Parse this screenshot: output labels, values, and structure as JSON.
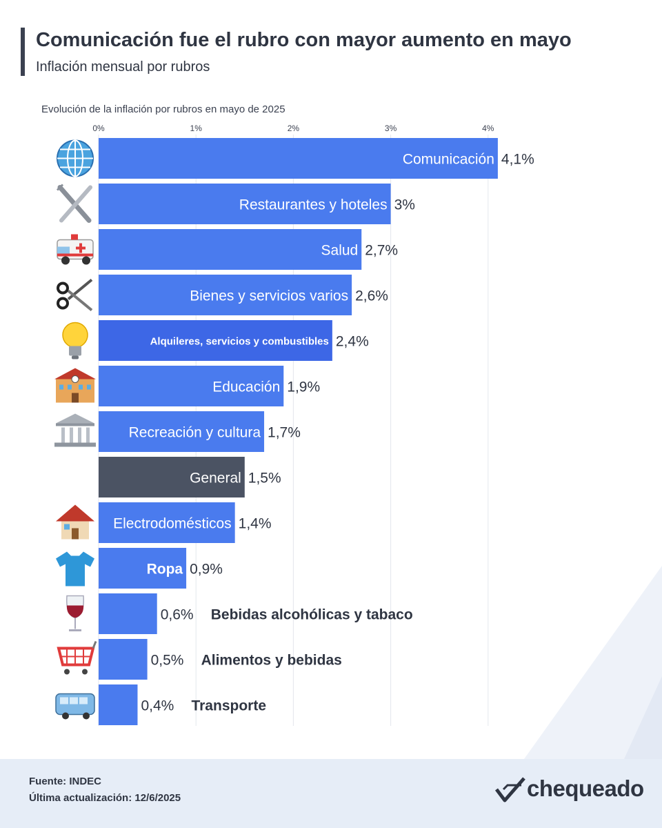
{
  "header": {
    "title": "Comunicación fue el rubro con mayor aumento en mayo",
    "subtitle": "Inflación mensual por rubros"
  },
  "chart_data": {
    "type": "bar",
    "orientation": "horizontal",
    "title": "Evolución de la inflación por rubros en mayo de 2025",
    "xlim": [
      0,
      4.2
    ],
    "ticks": [
      "0%",
      "1%",
      "2%",
      "3%",
      "4%"
    ],
    "tick_values": [
      0,
      1,
      2,
      3,
      4
    ],
    "grid": true,
    "categories": [
      "Comunicación",
      "Restaurantes y hoteles",
      "Salud",
      "Bienes y servicios varios",
      "Alquileres, servicios y combustibles",
      "Educación",
      "Recreación y cultura",
      "General",
      "Electrodomésticos",
      "Ropa",
      "Bebidas alcohólicas y tabaco",
      "Alimentos y bebidas",
      "Transporte"
    ],
    "values": [
      4.1,
      3.0,
      2.7,
      2.6,
      2.4,
      1.9,
      1.7,
      1.5,
      1.4,
      0.9,
      0.6,
      0.5,
      0.4
    ],
    "value_labels": [
      "4,1%",
      "3%",
      "2,7%",
      "2,6%",
      "2,4%",
      "1,9%",
      "1,7%",
      "1,5%",
      "1,4%",
      "0,9%",
      "0,6%",
      "0,5%",
      "0,4%"
    ],
    "icons": [
      "globe-icon",
      "fork-knife-icon",
      "ambulance-icon",
      "scissors-icon",
      "lightbulb-icon",
      "school-icon",
      "museum-icon",
      "",
      "house-icon",
      "tshirt-icon",
      "wine-glass-icon",
      "shopping-cart-icon",
      "bus-icon"
    ],
    "colors": {
      "bar": "#4a7bee",
      "highlight": "#3d67e6",
      "general": "#4b5363",
      "grid": "#e3e6ec"
    }
  },
  "footer": {
    "source": "Fuente: INDEC",
    "updated": "Última actualización: 12/6/2025",
    "brand": "chequeado"
  }
}
